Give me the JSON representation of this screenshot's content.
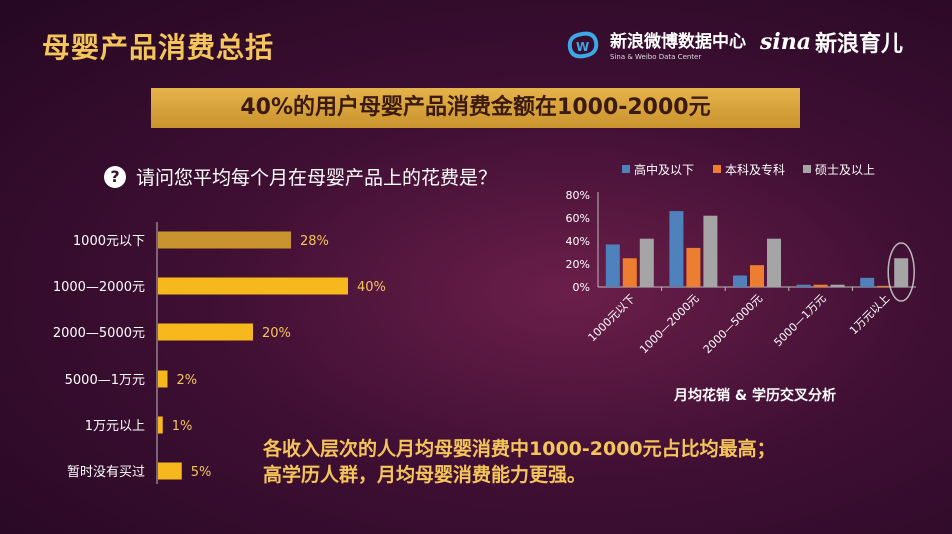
{
  "title": "母婴产品消费总括",
  "logos": {
    "weibo_cn": "新浪微博数据中心",
    "weibo_en": "Sina & Weibo Data Center",
    "sina": "sina",
    "sina_cn": "新浪育儿"
  },
  "banner": "40%的用户母婴产品消费金额在1000-2000元",
  "question": {
    "icon": "?",
    "text": "请问您平均每个月在母婴产品上的花费是？"
  },
  "chart_data": [
    {
      "type": "bar",
      "orientation": "horizontal",
      "categories": [
        "1000元以下",
        "1000—2000元",
        "2000—5000元",
        "5000—1万元",
        "1万元以上",
        "暂时没有买过"
      ],
      "values": [
        28,
        40,
        20,
        2,
        1,
        5
      ],
      "value_labels": [
        "28%",
        "40%",
        "20%",
        "2%",
        "1%",
        "5%"
      ],
      "colors": [
        "#c9932e",
        "#f6b81c",
        "#f6b81c",
        "#f6b81c",
        "#f6b81c",
        "#f6b81c"
      ]
    },
    {
      "type": "bar",
      "categories": [
        "1000元以下",
        "1000—2000元",
        "2000—5000元",
        "5000—1万元",
        "1万元以上"
      ],
      "series": [
        {
          "name": "高中及以下",
          "color": "#4f81bd",
          "values": [
            37,
            66,
            10,
            2,
            8
          ]
        },
        {
          "name": "本科及专科",
          "color": "#ed7d31",
          "values": [
            25,
            34,
            19,
            2,
            1
          ]
        },
        {
          "name": "硕士及以上",
          "color": "#a5a5a5",
          "values": [
            42,
            62,
            42,
            2,
            25
          ]
        }
      ],
      "yticks": [
        "0%",
        "20%",
        "40%",
        "60%",
        "80%"
      ],
      "ylim": [
        0,
        80
      ],
      "xlabel": "月均花销 & 学历交叉分析",
      "legend": "top"
    }
  ],
  "conclusion": {
    "line1": "各收入层次的人月均母婴消费中1000-2000元占比均最高；",
    "line2": "高学历人群，月均母婴消费能力更强。"
  }
}
